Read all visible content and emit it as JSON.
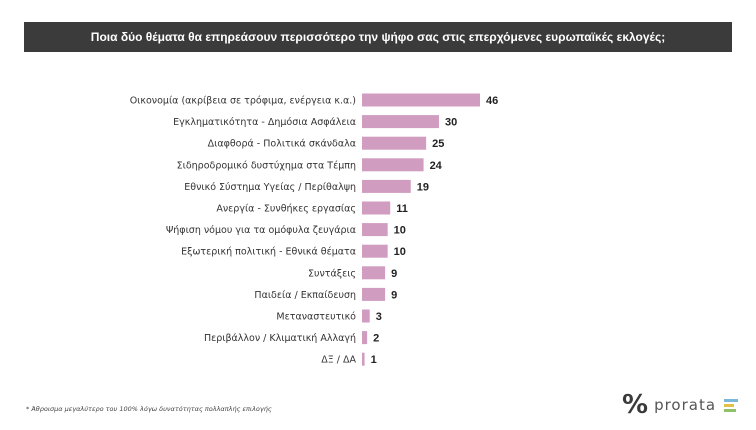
{
  "header": {
    "title": "Ποια δύο θέματα θα επηρεάσουν περισσότερο την ψήφο σας στις επερχόμενες ευρωπαϊκές εκλογές;"
  },
  "chart_data": {
    "type": "bar",
    "orientation": "horizontal",
    "title": "Ποια δύο θέματα θα επηρεάσουν περισσότερο την ψήφο σας στις επερχόμενες ευρωπαϊκές εκλογές;",
    "categories": [
      "Οικονομία (ακρίβεια σε τρόφιμα, ενέργεια κ.α.)",
      "Εγκληματικότητα - Δημόσια Ασφάλεια",
      "Διαφθορά - Πολιτικά σκάνδαλα",
      "Σιδηροδρομικό δυστύχημα στα Τέμπη",
      "Εθνικό Σύστημα Υγείας / Περίθαλψη",
      "Ανεργία - Συνθήκες εργασίας",
      "Ψήφιση νόμου για τα ομόφυλα ζευγάρια",
      "Εξωτερική πολιτική - Εθνικά θέματα",
      "Συντάξεις",
      "Παιδεία / Εκπαίδευση",
      "Μεταναστευτικό",
      "Περιβάλλον / Κλιματική Αλλαγή",
      "ΔΞ / ΔΑ"
    ],
    "values": [
      46,
      30,
      25,
      24,
      19,
      11,
      10,
      10,
      9,
      9,
      3,
      2,
      1
    ],
    "xlabel": "",
    "ylabel": "",
    "xlim": [
      0,
      46
    ],
    "grid": false,
    "legend": "none",
    "bar_color": "#d09cbf"
  },
  "footnote": "* Άθροισμα μεγαλύτερο του 100% λόγω δυνατότητας πολλαπλής επιλογής",
  "brand": {
    "mark": "%",
    "name": "prorata",
    "colors": [
      "#7ab8d9",
      "#e0c24a",
      "#8fc16a"
    ]
  }
}
